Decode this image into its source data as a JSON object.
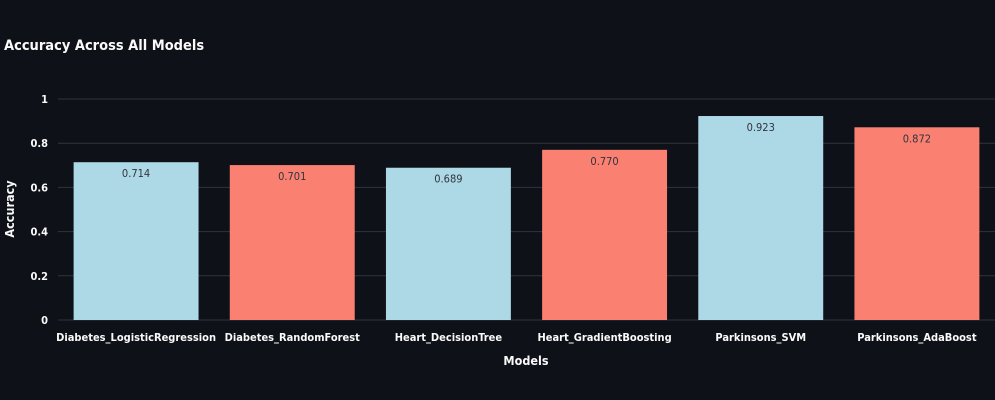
{
  "chart_data": {
    "type": "bar",
    "title": "Accuracy Across All Models",
    "xlabel": "Models",
    "ylabel": "Accuracy",
    "ylim": [
      0,
      1
    ],
    "yticks": [
      0,
      0.2,
      0.4,
      0.6,
      0.8,
      1
    ],
    "ytick_labels": [
      "0",
      "0.2",
      "0.4",
      "0.6",
      "0.8",
      "1"
    ],
    "grid": true,
    "categories": [
      "Diabetes_LogisticRegression",
      "Diabetes_RandomForest",
      "Heart_DecisionTree",
      "Heart_GradientBoosting",
      "Parkinsons_SVM",
      "Parkinsons_AdaBoost"
    ],
    "values": [
      0.714,
      0.701,
      0.689,
      0.77,
      0.923,
      0.872
    ],
    "value_labels": [
      "0.714",
      "0.701",
      "0.689",
      "0.770",
      "0.923",
      "0.872"
    ],
    "bar_colors": [
      "#add8e6",
      "#fa8072",
      "#add8e6",
      "#fa8072",
      "#add8e6",
      "#fa8072"
    ]
  },
  "colors": {
    "background": "#0e1117",
    "text": "#fafafa",
    "grid": "#31333f",
    "data_label": "#31333f"
  }
}
